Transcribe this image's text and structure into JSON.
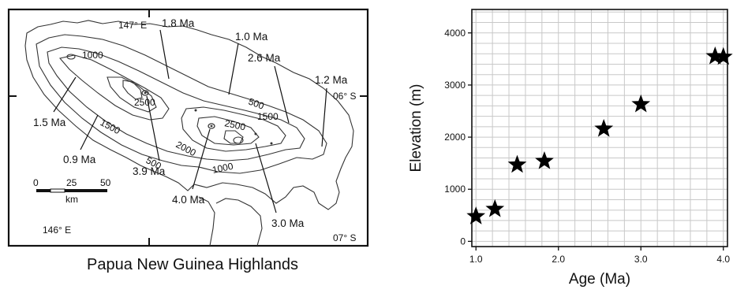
{
  "map": {
    "caption": "Papua New Guinea Highlands",
    "coord_labels": {
      "lon_top": "147° E",
      "lon_bottom": "146° E",
      "lat_right": "06° S",
      "lat_bottom": "07° S"
    },
    "scale": {
      "t0": "0",
      "t25": "25",
      "t50": "50",
      "unit": "km"
    },
    "age_labels": {
      "a18": "1.8 Ma",
      "a10": "1.0 Ma",
      "a26": "2.6 Ma",
      "a12": "1.2 Ma",
      "a15": "1.5 Ma",
      "a09": "0.9 Ma",
      "a39": "3.9 Ma",
      "a40": "4.0 Ma",
      "a30": "3.0 Ma"
    },
    "contour_labels": {
      "c1000a": "1000",
      "c2500a": "2500",
      "c1500a": "1500",
      "c500a": "500",
      "c1500b": "1500",
      "c2500b": "2500",
      "c2000": "2000",
      "c500b": "500",
      "c1000b": "1000"
    }
  },
  "chart_data": {
    "type": "scatter",
    "xlabel": "Age (Ma)",
    "ylabel": "Elevation (m)",
    "xlim": [
      0.95,
      4.05
    ],
    "ylim": [
      -100,
      4450
    ],
    "xticks": [
      1.0,
      2.0,
      3.0,
      4.0
    ],
    "xtick_labels": [
      "1.0",
      "2.0",
      "3.0",
      "4.0"
    ],
    "yticks": [
      0,
      1000,
      2000,
      3000,
      4000
    ],
    "ytick_labels": [
      "0",
      "1000",
      "2000",
      "3000",
      "4000"
    ],
    "grid": true,
    "marker": "star",
    "points": [
      {
        "x": 1.0,
        "y": 480
      },
      {
        "x": 1.23,
        "y": 620
      },
      {
        "x": 1.5,
        "y": 1470
      },
      {
        "x": 1.83,
        "y": 1540
      },
      {
        "x": 2.55,
        "y": 2160
      },
      {
        "x": 3.0,
        "y": 2630
      },
      {
        "x": 3.9,
        "y": 3550
      },
      {
        "x": 4.0,
        "y": 3540
      }
    ]
  }
}
